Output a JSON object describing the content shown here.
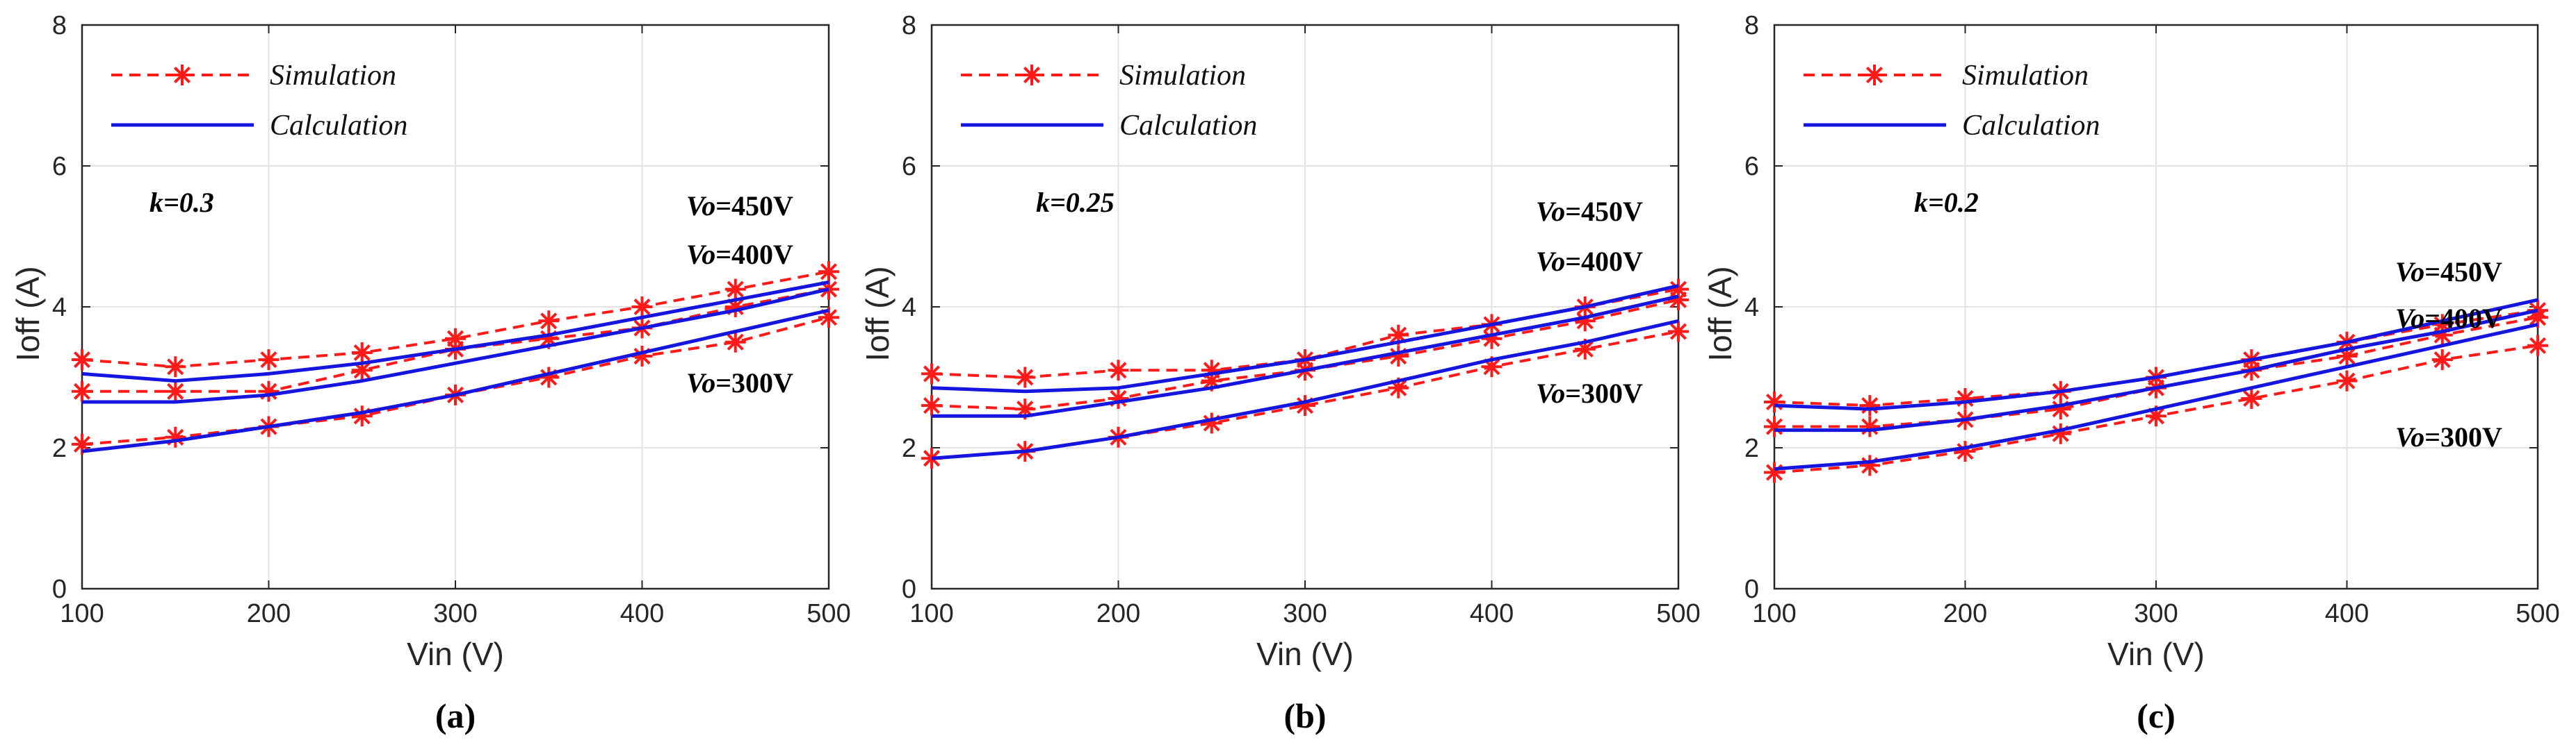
{
  "chart_data": [
    {
      "type": "line",
      "panel_label": "(a)",
      "xlabel": "Vin (V)",
      "ylabel": "Ioff (A)",
      "xlim": [
        100,
        500
      ],
      "ylim": [
        0,
        8
      ],
      "xticks": [
        100,
        200,
        300,
        400,
        500
      ],
      "yticks": [
        0,
        2,
        4,
        6,
        8
      ],
      "grid": true,
      "legend": {
        "placement": "top-left",
        "entries": [
          "Simulation",
          "Calculation"
        ]
      },
      "k_label": "k=0.3",
      "x": [
        100,
        150,
        200,
        250,
        300,
        350,
        400,
        450,
        500
      ],
      "series": [
        {
          "name": "Simulation",
          "group": "Vo=450V",
          "style": "dashed-star",
          "values": [
            3.25,
            3.15,
            3.25,
            3.35,
            3.55,
            3.8,
            4.0,
            4.25,
            4.5
          ]
        },
        {
          "name": "Simulation",
          "group": "Vo=400V",
          "style": "dashed-star",
          "values": [
            2.8,
            2.8,
            2.8,
            3.1,
            3.4,
            3.55,
            3.7,
            4.0,
            4.25
          ]
        },
        {
          "name": "Simulation",
          "group": "Vo=300V",
          "style": "dashed-star",
          "values": [
            2.05,
            2.15,
            2.3,
            2.45,
            2.75,
            3.0,
            3.3,
            3.5,
            3.85
          ]
        },
        {
          "name": "Calculation",
          "group": "Vo=450V",
          "style": "solid",
          "values": [
            3.05,
            2.95,
            3.05,
            3.2,
            3.4,
            3.6,
            3.85,
            4.1,
            4.35
          ]
        },
        {
          "name": "Calculation",
          "group": "Vo=400V",
          "style": "solid",
          "values": [
            2.65,
            2.65,
            2.75,
            2.95,
            3.2,
            3.45,
            3.7,
            3.95,
            4.25
          ]
        },
        {
          "name": "Calculation",
          "group": "Vo=300V",
          "style": "solid",
          "values": [
            1.95,
            2.1,
            2.3,
            2.5,
            2.75,
            3.05,
            3.35,
            3.65,
            3.95
          ]
        }
      ],
      "annotations": [
        {
          "var": "Vo",
          "text": "=450V",
          "near": "upper series"
        },
        {
          "var": "Vo",
          "text": "=400V",
          "near": "middle series"
        },
        {
          "var": "Vo",
          "text": "=300V",
          "near": "lower series"
        }
      ]
    },
    {
      "type": "line",
      "panel_label": "(b)",
      "xlabel": "Vin (V)",
      "ylabel": "Ioff (A)",
      "xlim": [
        100,
        500
      ],
      "ylim": [
        0,
        8
      ],
      "xticks": [
        100,
        200,
        300,
        400,
        500
      ],
      "yticks": [
        0,
        2,
        4,
        6,
        8
      ],
      "grid": true,
      "legend": {
        "placement": "top-left",
        "entries": [
          "Simulation",
          "Calculation"
        ]
      },
      "k_label": "k=0.25",
      "x": [
        100,
        150,
        200,
        250,
        300,
        350,
        400,
        450,
        500
      ],
      "series": [
        {
          "name": "Simulation",
          "group": "Vo=450V",
          "style": "dashed-star",
          "values": [
            3.05,
            3.0,
            3.1,
            3.1,
            3.25,
            3.6,
            3.75,
            4.0,
            4.25
          ]
        },
        {
          "name": "Simulation",
          "group": "Vo=400V",
          "style": "dashed-star",
          "values": [
            2.6,
            2.55,
            2.7,
            2.95,
            3.1,
            3.3,
            3.55,
            3.8,
            4.1
          ]
        },
        {
          "name": "Simulation",
          "group": "Vo=300V",
          "style": "dashed-star",
          "values": [
            1.85,
            1.95,
            2.15,
            2.35,
            2.6,
            2.85,
            3.15,
            3.4,
            3.65
          ]
        },
        {
          "name": "Calculation",
          "group": "Vo=450V",
          "style": "solid",
          "values": [
            2.85,
            2.8,
            2.85,
            3.05,
            3.25,
            3.5,
            3.75,
            4.0,
            4.3
          ]
        },
        {
          "name": "Calculation",
          "group": "Vo=400V",
          "style": "solid",
          "values": [
            2.45,
            2.45,
            2.65,
            2.85,
            3.1,
            3.35,
            3.6,
            3.85,
            4.15
          ]
        },
        {
          "name": "Calculation",
          "group": "Vo=300V",
          "style": "solid",
          "values": [
            1.85,
            1.95,
            2.15,
            2.4,
            2.65,
            2.95,
            3.25,
            3.5,
            3.8
          ]
        }
      ],
      "annotations": [
        {
          "var": "Vo",
          "text": "=450V",
          "near": "upper series"
        },
        {
          "var": "Vo",
          "text": "=400V",
          "near": "middle series"
        },
        {
          "var": "Vo",
          "text": "=300V",
          "near": "lower series"
        }
      ]
    },
    {
      "type": "line",
      "panel_label": "(c)",
      "xlabel": "Vin (V)",
      "ylabel": "Ioff (A)",
      "xlim": [
        100,
        500
      ],
      "ylim": [
        0,
        8
      ],
      "xticks": [
        100,
        200,
        300,
        400,
        500
      ],
      "yticks": [
        0,
        2,
        4,
        6,
        8
      ],
      "grid": true,
      "legend": {
        "placement": "top-left",
        "entries": [
          "Simulation",
          "Calculation"
        ]
      },
      "k_label": "k=0.2",
      "x": [
        100,
        150,
        200,
        250,
        300,
        350,
        400,
        450,
        500
      ],
      "series": [
        {
          "name": "Simulation",
          "group": "Vo=450V",
          "style": "dashed-star",
          "values": [
            2.65,
            2.6,
            2.7,
            2.8,
            3.0,
            3.25,
            3.5,
            3.75,
            3.95
          ]
        },
        {
          "name": "Simulation",
          "group": "Vo=400V",
          "style": "dashed-star",
          "values": [
            2.3,
            2.3,
            2.4,
            2.55,
            2.85,
            3.1,
            3.3,
            3.6,
            3.85
          ]
        },
        {
          "name": "Simulation",
          "group": "Vo=300V",
          "style": "dashed-star",
          "values": [
            1.65,
            1.75,
            1.95,
            2.2,
            2.45,
            2.7,
            2.95,
            3.25,
            3.45
          ]
        },
        {
          "name": "Calculation",
          "group": "Vo=450V",
          "style": "solid",
          "values": [
            2.6,
            2.55,
            2.65,
            2.8,
            3.0,
            3.25,
            3.5,
            3.8,
            4.1
          ]
        },
        {
          "name": "Calculation",
          "group": "Vo=400V",
          "style": "solid",
          "values": [
            2.25,
            2.25,
            2.4,
            2.6,
            2.85,
            3.1,
            3.4,
            3.65,
            3.95
          ]
        },
        {
          "name": "Calculation",
          "group": "Vo=300V",
          "style": "solid",
          "values": [
            1.7,
            1.8,
            2.0,
            2.25,
            2.55,
            2.85,
            3.15,
            3.45,
            3.75
          ]
        }
      ],
      "annotations": [
        {
          "var": "Vo",
          "text": "=450V",
          "near": "upper series"
        },
        {
          "var": "Vo",
          "text": "=400V",
          "near": "middle series"
        },
        {
          "var": "Vo",
          "text": "=300V",
          "near": "lower series"
        }
      ]
    }
  ],
  "colors": {
    "simulation": "#ff1a1a",
    "calculation": "#1515e0",
    "grid": "#e3e3e3",
    "axis": "#262626"
  }
}
